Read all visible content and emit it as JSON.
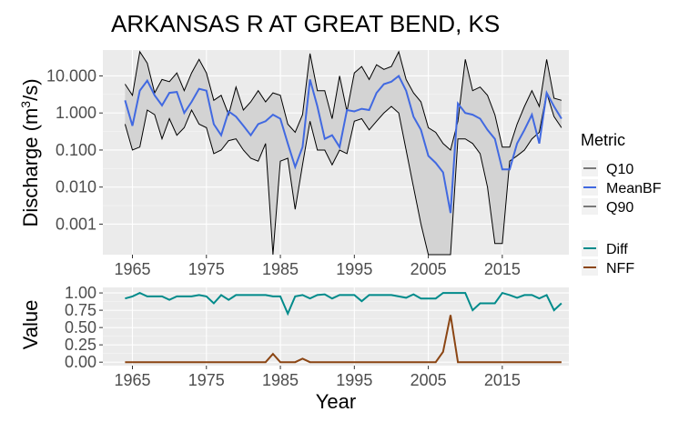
{
  "chart_data": [
    {
      "type": "line",
      "title": "ARKANSAS R AT GREAT BEND, KS",
      "xlabel": "",
      "ylabel": "Discharge (m",
      "ylabel_sup": "3",
      "ylabel_end": "/s)",
      "yscale": "log",
      "ylim": [
        0.00015,
        50
      ],
      "xlim": [
        1961,
        2024
      ],
      "grid": true,
      "yticks": [
        0.001,
        0.01,
        0.1,
        1,
        10
      ],
      "ytick_labels": [
        "0.001",
        "0.010",
        "0.100",
        "1.000",
        "10.000"
      ],
      "xticks": [
        1965,
        1975,
        1985,
        1995,
        2005,
        2015
      ],
      "xtick_labels": [
        "1965",
        "1975",
        "1985",
        "1995",
        "2005",
        "2015"
      ],
      "legend": {
        "title": "Metric",
        "position": "right",
        "entries": [
          {
            "name": "Q10",
            "color": "#000000"
          },
          {
            "name": "MeanBF",
            "color": "#4169e1"
          },
          {
            "name": "Q90",
            "color": "#000000"
          }
        ]
      },
      "x": [
        1964,
        1965,
        1966,
        1967,
        1968,
        1969,
        1970,
        1971,
        1972,
        1973,
        1974,
        1975,
        1976,
        1977,
        1978,
        1979,
        1980,
        1981,
        1982,
        1983,
        1984,
        1985,
        1986,
        1987,
        1988,
        1989,
        1990,
        1991,
        1992,
        1993,
        1994,
        1995,
        1996,
        1997,
        1998,
        1999,
        2000,
        2001,
        2002,
        2003,
        2004,
        2005,
        2006,
        2007,
        2008,
        2009,
        2010,
        2011,
        2012,
        2013,
        2014,
        2015,
        2016,
        2017,
        2018,
        2019,
        2020,
        2021,
        2022,
        2023
      ],
      "series": [
        {
          "name": "Q90",
          "values": [
            6.0,
            3.0,
            45.0,
            22.0,
            3.5,
            8.0,
            7.0,
            12.0,
            4.0,
            12.0,
            28.0,
            12.0,
            2.2,
            3.0,
            0.9,
            5.0,
            1.2,
            2.0,
            4.0,
            2.0,
            3.5,
            3.0,
            0.5,
            0.3,
            0.9,
            40.0,
            4.0,
            4.0,
            0.7,
            10.0,
            1.1,
            12.0,
            18.0,
            8.0,
            20.0,
            15.0,
            18.0,
            45.0,
            8.0,
            3.5,
            2.0,
            0.4,
            0.3,
            0.15,
            0.1,
            0.6,
            28.0,
            4.0,
            5.0,
            3.0,
            0.9,
            0.12,
            0.12,
            0.5,
            1.5,
            4.0,
            1.5,
            28.0,
            2.5,
            2.2
          ]
        },
        {
          "name": "MeanBF",
          "values": [
            2.2,
            0.45,
            4.0,
            7.5,
            3.0,
            1.6,
            3.5,
            3.7,
            1.0,
            2.0,
            4.5,
            4.0,
            0.5,
            0.25,
            1.1,
            0.8,
            0.45,
            0.25,
            0.5,
            0.6,
            0.9,
            0.7,
            0.15,
            0.035,
            0.12,
            8.0,
            1.5,
            0.2,
            0.25,
            0.12,
            1.2,
            1.1,
            1.3,
            1.2,
            3.5,
            6.0,
            7.0,
            10.0,
            4.0,
            0.8,
            0.35,
            0.07,
            0.045,
            0.025,
            0.002,
            1.8,
            1.0,
            0.9,
            0.7,
            0.35,
            0.2,
            0.03,
            0.03,
            0.15,
            0.35,
            0.9,
            0.15,
            3.5,
            1.5,
            0.7
          ]
        },
        {
          "name": "Q10",
          "values": [
            0.5,
            0.1,
            0.12,
            1.2,
            0.9,
            0.2,
            0.7,
            0.25,
            0.4,
            1.2,
            0.5,
            0.4,
            0.08,
            0.1,
            0.18,
            0.2,
            0.1,
            0.06,
            0.05,
            0.15,
            0.00015,
            0.05,
            0.06,
            0.0025,
            0.04,
            0.6,
            0.1,
            0.1,
            0.04,
            0.1,
            0.08,
            0.6,
            0.7,
            0.35,
            0.6,
            1.0,
            1.5,
            1.0,
            0.1,
            0.01,
            0.001,
            0.00015,
            0.00012,
            0.0001,
            0.00015,
            0.2,
            0.2,
            0.15,
            0.08,
            0.01,
            0.0003,
            0.0003,
            0.05,
            0.07,
            0.1,
            0.2,
            0.3,
            3.5,
            0.8,
            0.4
          ]
        }
      ]
    },
    {
      "type": "line",
      "title": "",
      "xlabel": "Year",
      "ylabel": "Value",
      "ylim": [
        -0.05,
        1.08
      ],
      "xlim": [
        1961,
        2024
      ],
      "grid": true,
      "yticks": [
        0,
        0.25,
        0.5,
        0.75,
        1.0
      ],
      "ytick_labels": [
        "0.00",
        "0.25",
        "0.50",
        "0.75",
        "1.00"
      ],
      "xticks": [
        1965,
        1975,
        1985,
        1995,
        2005,
        2015
      ],
      "xtick_labels": [
        "1965",
        "1975",
        "1985",
        "1995",
        "2005",
        "2015"
      ],
      "legend": {
        "title": "",
        "position": "right",
        "entries": [
          {
            "name": "Diff",
            "color": "#008b8b"
          },
          {
            "name": "NFF",
            "color": "#8b4513"
          }
        ]
      },
      "x": [
        1964,
        1965,
        1966,
        1967,
        1968,
        1969,
        1970,
        1971,
        1972,
        1973,
        1974,
        1975,
        1976,
        1977,
        1978,
        1979,
        1980,
        1981,
        1982,
        1983,
        1984,
        1985,
        1986,
        1987,
        1988,
        1989,
        1990,
        1991,
        1992,
        1993,
        1994,
        1995,
        1996,
        1997,
        1998,
        1999,
        2000,
        2001,
        2002,
        2003,
        2004,
        2005,
        2006,
        2007,
        2008,
        2009,
        2010,
        2011,
        2012,
        2013,
        2014,
        2015,
        2016,
        2017,
        2018,
        2019,
        2020,
        2021,
        2022,
        2023
      ],
      "series": [
        {
          "name": "Diff",
          "values": [
            0.92,
            0.95,
            1.0,
            0.95,
            0.95,
            0.95,
            0.9,
            0.95,
            0.95,
            0.95,
            0.97,
            0.95,
            0.85,
            0.97,
            0.9,
            0.97,
            0.97,
            0.97,
            0.97,
            0.97,
            0.95,
            0.95,
            0.7,
            0.95,
            0.97,
            0.92,
            0.97,
            0.98,
            0.92,
            0.97,
            0.97,
            0.97,
            0.88,
            0.97,
            0.97,
            0.97,
            0.97,
            0.95,
            0.93,
            0.98,
            0.92,
            0.92,
            0.92,
            1.0,
            1.0,
            1.0,
            1.0,
            0.75,
            0.85,
            0.85,
            0.85,
            1.0,
            0.97,
            0.93,
            0.97,
            0.97,
            0.92,
            0.97,
            0.75,
            0.85
          ]
        },
        {
          "name": "NFF",
          "values": [
            0,
            0,
            0,
            0,
            0,
            0,
            0,
            0,
            0,
            0,
            0,
            0,
            0,
            0,
            0,
            0,
            0,
            0,
            0,
            0,
            0.12,
            0,
            0,
            0,
            0.05,
            0,
            0,
            0,
            0,
            0,
            0,
            0,
            0,
            0,
            0,
            0,
            0,
            0,
            0,
            0,
            0,
            0,
            0,
            0.15,
            0.68,
            0,
            0,
            0,
            0,
            0,
            0,
            0,
            0,
            0,
            0,
            0,
            0,
            0,
            0,
            0
          ]
        }
      ]
    }
  ]
}
